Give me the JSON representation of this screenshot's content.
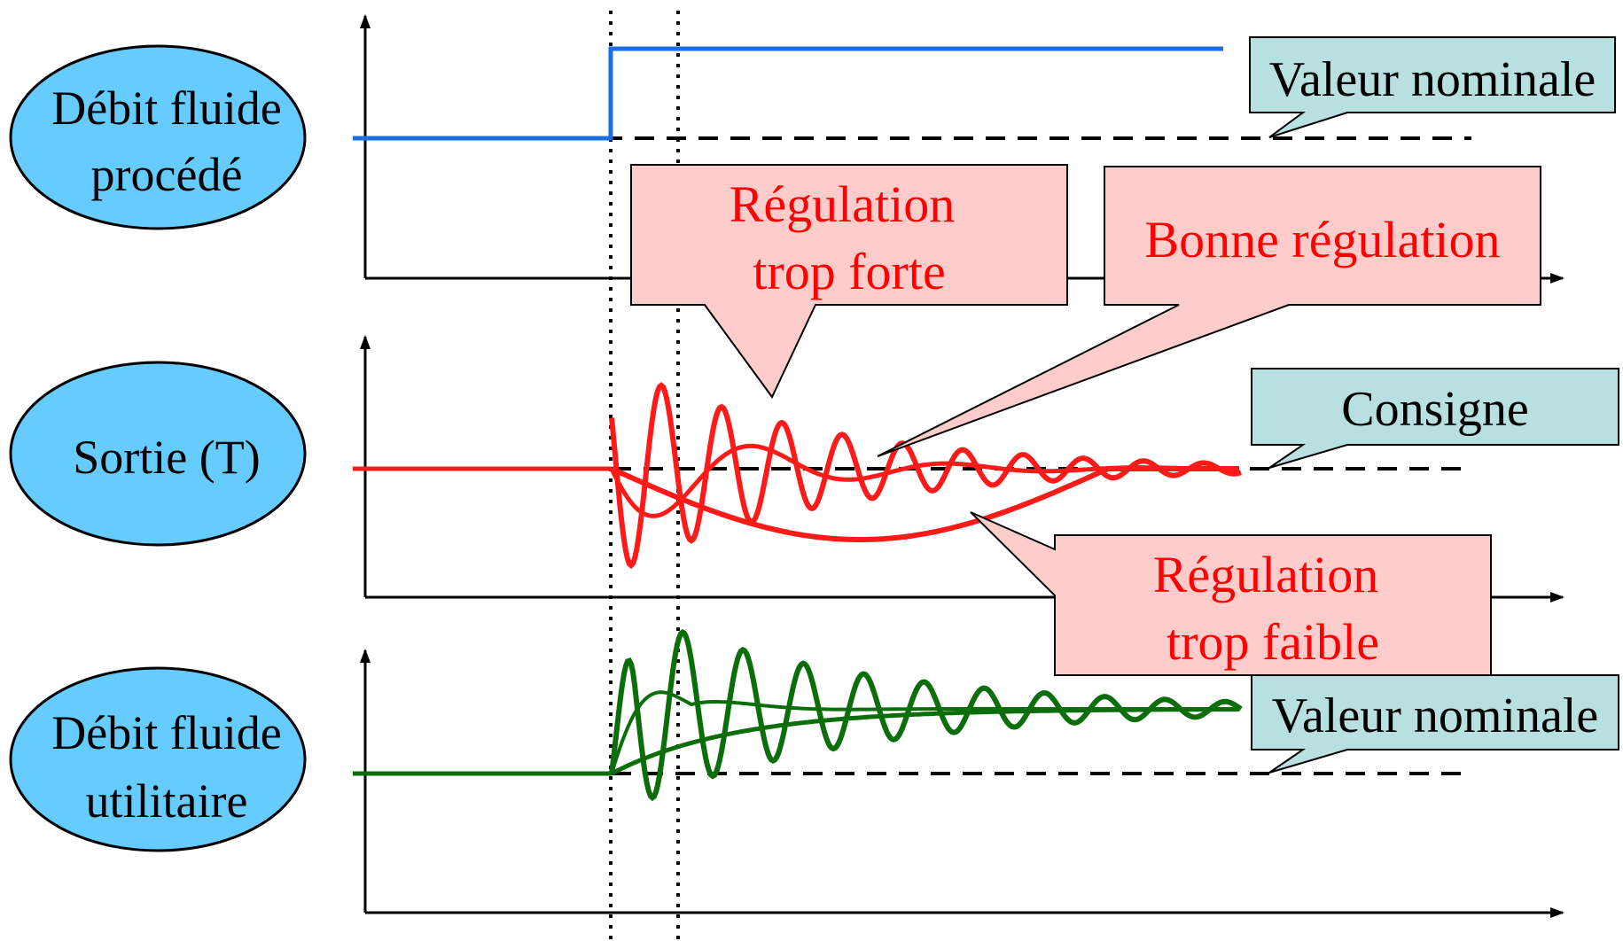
{
  "colors": {
    "flow": "#1a6ee6",
    "output": "#ff1a1a",
    "utility": "#0b6e0b",
    "ellipse_fill": "#66ccff",
    "teal_box": "#b8e0e0",
    "pink_box": "#ffcccc",
    "axis": "#000000"
  },
  "rows": [
    {
      "label_lines": [
        "Débit fluide",
        "procédé"
      ]
    },
    {
      "label_lines": [
        "Sortie (T)"
      ]
    },
    {
      "label_lines": [
        "Débit fluide",
        "utilitaire"
      ]
    }
  ],
  "callouts": {
    "valeur_nominale_top": "Valeur nominale",
    "consigne": "Consigne",
    "valeur_nominale_bottom": "Valeur nominale",
    "regulation_trop_forte": [
      "Régulation",
      "trop forte"
    ],
    "bonne_regulation": "Bonne régulation",
    "regulation_trop_faible": [
      "Régulation",
      "trop faible"
    ]
  },
  "curves": {
    "response_types": [
      "Régulation trop forte",
      "Bonne régulation",
      "Régulation trop faible"
    ]
  }
}
